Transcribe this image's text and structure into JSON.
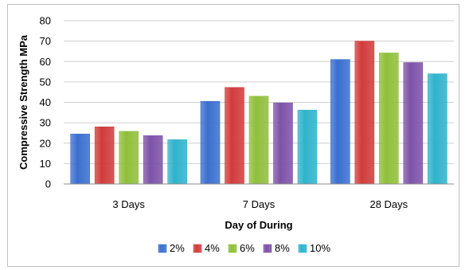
{
  "chart_data": {
    "type": "bar",
    "categories": [
      "3 Days",
      "7 Days",
      "28 Days"
    ],
    "series": [
      {
        "name": "2%",
        "values": [
          24.5,
          40.5,
          61
        ],
        "color": "#3a6fcf"
      },
      {
        "name": "4%",
        "values": [
          28,
          47.3,
          70
        ],
        "color": "#d13b3b"
      },
      {
        "name": "6%",
        "values": [
          25.8,
          43,
          64.2
        ],
        "color": "#8fbf3a"
      },
      {
        "name": "8%",
        "values": [
          23.7,
          39.7,
          59.5
        ],
        "color": "#7d52a8"
      },
      {
        "name": "10%",
        "values": [
          21.7,
          36.2,
          54
        ],
        "color": "#2eb3cc"
      }
    ],
    "xlabel": "Day of During",
    "ylabel": "Compressive Strength MPa",
    "ylim": [
      0,
      80
    ],
    "yticks": [
      "0",
      "10",
      "20",
      "30",
      "40",
      "50",
      "60",
      "70",
      "80"
    ],
    "grid": true,
    "legend_position": "bottom"
  }
}
